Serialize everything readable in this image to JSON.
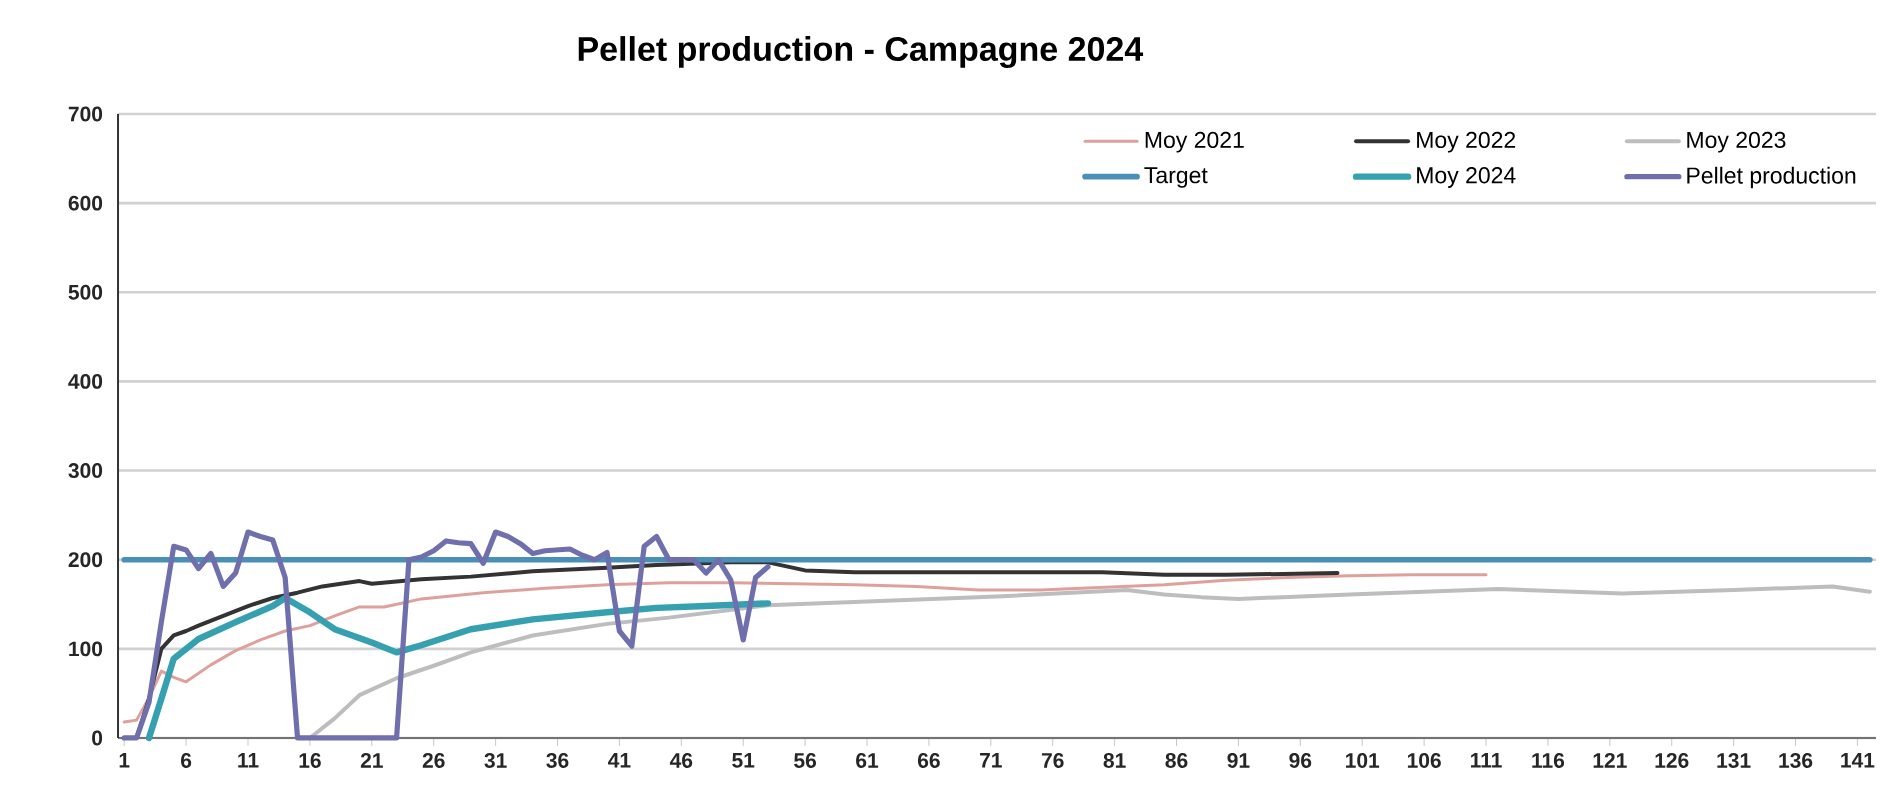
{
  "chart_data": {
    "type": "line",
    "title": "Pellet production - Campagne 2024",
    "xlim": [
      0.5,
      142.5
    ],
    "xticks": [
      1,
      6,
      11,
      16,
      21,
      26,
      31,
      36,
      41,
      46,
      51,
      56,
      61,
      66,
      71,
      76,
      81,
      86,
      91,
      96,
      101,
      106,
      111,
      116,
      121,
      126,
      131,
      136,
      141
    ],
    "ylim": [
      0,
      700
    ],
    "yticks": [
      0,
      100,
      200,
      300,
      400,
      500,
      600,
      700
    ],
    "grid": "y",
    "legend": "top right",
    "series": [
      {
        "name": "Moy 2021",
        "color": "#dfa09c",
        "x": [
          1,
          2,
          3,
          4,
          5,
          6,
          8,
          10,
          12,
          14,
          16,
          18,
          20,
          22,
          25,
          30,
          35,
          40,
          45,
          50,
          55,
          60,
          65,
          70,
          75,
          80,
          85,
          90,
          95,
          100,
          105,
          111
        ],
        "values": [
          18,
          20,
          45,
          75,
          68,
          63,
          82,
          98,
          110,
          120,
          126,
          137,
          147,
          147,
          156,
          163,
          168,
          172,
          174,
          174,
          173,
          172,
          170,
          166,
          166,
          169,
          172,
          177,
          180,
          182,
          183,
          183
        ]
      },
      {
        "name": "Moy 2022",
        "color": "#333333",
        "x": [
          2,
          3,
          4,
          5,
          6,
          7,
          9,
          11,
          13,
          15,
          17,
          20,
          21,
          25,
          29,
          34,
          40,
          44,
          50,
          53,
          56,
          60,
          70,
          80,
          85,
          90,
          99
        ],
        "values": [
          0,
          44,
          100,
          115,
          120,
          126,
          137,
          148,
          157,
          163,
          170,
          176,
          173,
          178,
          181,
          187,
          191,
          194,
          197,
          197,
          188,
          186,
          186,
          186,
          183,
          183,
          185
        ]
      },
      {
        "name": "Moy 2023",
        "color": "#bdbdbd",
        "x": [
          16,
          18,
          20,
          23,
          26,
          29,
          34,
          40,
          45,
          53,
          61,
          72,
          82,
          85,
          88,
          91,
          100,
          112,
          122,
          131,
          139,
          142
        ],
        "values": [
          0,
          22,
          48,
          67,
          81,
          96,
          115,
          128,
          135,
          149,
          153,
          159,
          166,
          161,
          158,
          156,
          161,
          167,
          162,
          166,
          170,
          164
        ]
      },
      {
        "name": "Target",
        "color": "#4a8fb8",
        "x": [
          1,
          142
        ],
        "values": [
          200,
          200
        ]
      },
      {
        "name": "Moy 2024",
        "color": "#35a0b0",
        "x": [
          3,
          4,
          5,
          7,
          10,
          13,
          14,
          16,
          18,
          21,
          23,
          25,
          29,
          34,
          40,
          44,
          48,
          53
        ],
        "values": [
          0,
          44,
          89,
          111,
          130,
          148,
          157,
          141,
          122,
          107,
          96,
          104,
          122,
          133,
          141,
          146,
          148,
          151
        ]
      },
      {
        "name": "Pellet production",
        "color": "#6f6fae",
        "x": [
          1,
          2,
          3,
          4,
          5,
          6,
          7,
          8,
          9,
          10,
          11,
          12,
          13,
          14,
          15,
          16,
          17,
          18,
          19,
          20,
          21,
          22,
          23,
          24,
          25,
          26,
          27,
          28,
          29,
          30,
          31,
          32,
          33,
          34,
          35,
          36,
          37,
          38,
          39,
          40,
          41,
          42,
          43,
          44,
          45,
          46,
          47,
          48,
          49,
          50,
          51,
          52,
          53
        ],
        "values": [
          0,
          0,
          40,
          130,
          215,
          211,
          190,
          207,
          170,
          185,
          231,
          226,
          222,
          180,
          0,
          0,
          0,
          0,
          0,
          0,
          0,
          0,
          0,
          200,
          203,
          210,
          221,
          219,
          218,
          196,
          231,
          226,
          218,
          207,
          210,
          211,
          212,
          205,
          200,
          208,
          120,
          103,
          215,
          226,
          200,
          200,
          200,
          185,
          200,
          177,
          110,
          180,
          192
        ]
      }
    ]
  }
}
